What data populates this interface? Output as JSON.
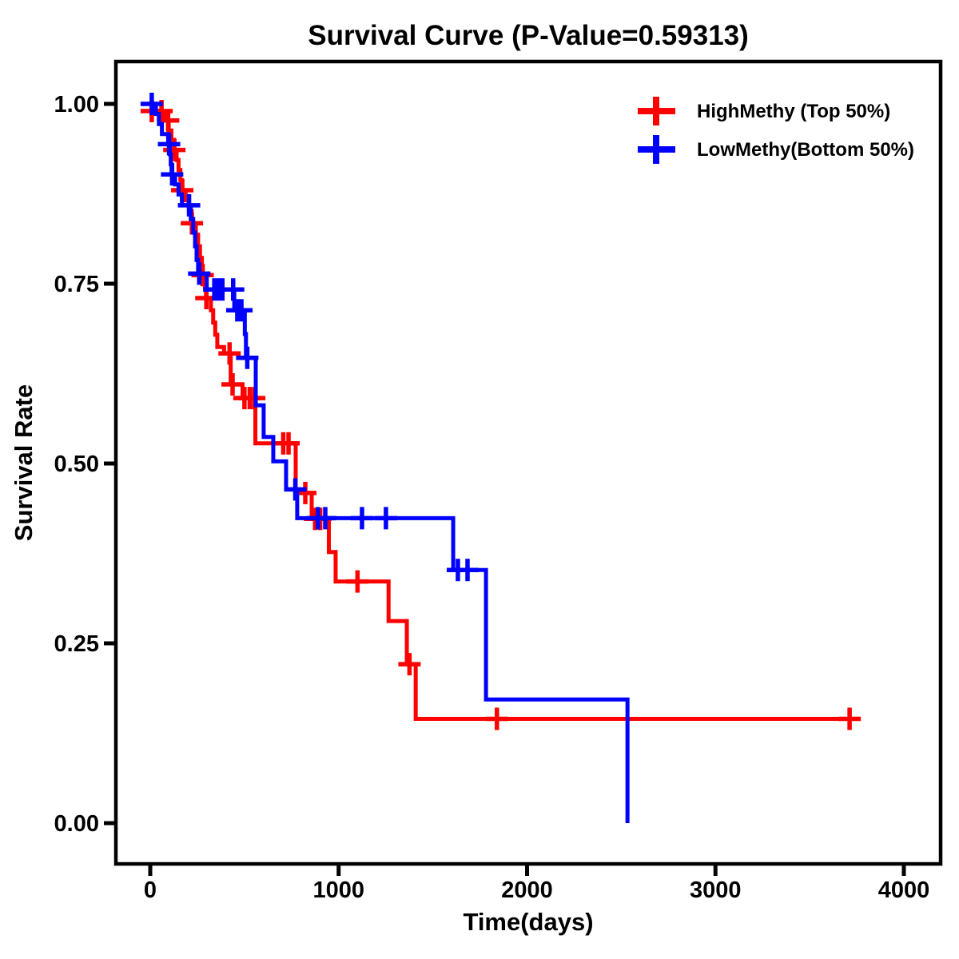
{
  "title": "Survival Curve (P-Value=0.59313)",
  "x_axis": {
    "label": "Time(days)"
  },
  "y_axis": {
    "label": "Survival Rate"
  },
  "legend": [
    {
      "label": "HighMethy (Top 50%)",
      "color": "#FF0000"
    },
    {
      "label": "LowMethy(Bottom 50%)",
      "color": "#0000FF"
    }
  ],
  "chart_data": {
    "type": "line",
    "subtype": "kaplan-meier-step-curve",
    "title": "Survival Curve (P-Value=0.59313)",
    "p_value": 0.59313,
    "xlabel": "Time(days)",
    "ylabel": "Survival Rate",
    "xlim": [
      0,
      4000
    ],
    "ylim": [
      0.0,
      1.0
    ],
    "grid": false,
    "legend_position": "top-right",
    "x_ticks": [
      0,
      1000,
      2000,
      3000,
      4000
    ],
    "y_ticks": [
      {
        "value": 0.0,
        "label": "0.00"
      },
      {
        "value": 0.25,
        "label": "0.25"
      },
      {
        "value": 0.5,
        "label": "0.50"
      },
      {
        "value": 0.75,
        "label": "0.75"
      },
      {
        "value": 1.0,
        "label": "1.00"
      }
    ],
    "series": [
      {
        "id": "highmethy",
        "name": "HighMethy (Top 50%)",
        "color": "#FF0000",
        "steps": [
          [
            0,
            1.0
          ],
          [
            12,
            0.99
          ],
          [
            80,
            0.977
          ],
          [
            98,
            0.963
          ],
          [
            112,
            0.95
          ],
          [
            126,
            0.936
          ],
          [
            140,
            0.922
          ],
          [
            150,
            0.908
          ],
          [
            160,
            0.894
          ],
          [
            168,
            0.88
          ],
          [
            188,
            0.866
          ],
          [
            205,
            0.851
          ],
          [
            220,
            0.834
          ],
          [
            242,
            0.818
          ],
          [
            254,
            0.802
          ],
          [
            264,
            0.786
          ],
          [
            274,
            0.762
          ],
          [
            290,
            0.746
          ],
          [
            296,
            0.73
          ],
          [
            322,
            0.713
          ],
          [
            334,
            0.696
          ],
          [
            345,
            0.679
          ],
          [
            356,
            0.662
          ],
          [
            392,
            0.653
          ],
          [
            427,
            0.61
          ],
          [
            490,
            0.591
          ],
          [
            558,
            0.528
          ],
          [
            772,
            0.459
          ],
          [
            857,
            0.423
          ],
          [
            948,
            0.377
          ],
          [
            984,
            0.336
          ],
          [
            1265,
            0.281
          ],
          [
            1362,
            0.221
          ],
          [
            1409,
            0.145
          ],
          [
            3712,
            0.145
          ]
        ],
        "censors": [
          [
            8,
            0.99
          ],
          [
            60,
            0.99
          ],
          [
            95,
            0.977
          ],
          [
            128,
            0.936
          ],
          [
            170,
            0.88
          ],
          [
            221,
            0.834
          ],
          [
            278,
            0.762
          ],
          [
            298,
            0.73
          ],
          [
            421,
            0.653
          ],
          [
            437,
            0.61
          ],
          [
            500,
            0.591
          ],
          [
            528,
            0.591
          ],
          [
            552,
            0.591
          ],
          [
            706,
            0.528
          ],
          [
            734,
            0.528
          ],
          [
            823,
            0.459
          ],
          [
            875,
            0.423
          ],
          [
            902,
            0.423
          ],
          [
            1100,
            0.336
          ],
          [
            1376,
            0.221
          ],
          [
            1840,
            0.145
          ],
          [
            3712,
            0.145
          ]
        ]
      },
      {
        "id": "lowmethy",
        "name": "LowMethy(Bottom 50%)",
        "color": "#0000FF",
        "steps": [
          [
            0,
            1.0
          ],
          [
            30,
            0.986
          ],
          [
            46,
            0.972
          ],
          [
            62,
            0.958
          ],
          [
            95,
            0.944
          ],
          [
            104,
            0.93
          ],
          [
            109,
            0.916
          ],
          [
            113,
            0.902
          ],
          [
            132,
            0.888
          ],
          [
            150,
            0.874
          ],
          [
            168,
            0.859
          ],
          [
            215,
            0.84
          ],
          [
            228,
            0.821
          ],
          [
            238,
            0.802
          ],
          [
            246,
            0.783
          ],
          [
            254,
            0.764
          ],
          [
            300,
            0.742
          ],
          [
            446,
            0.713
          ],
          [
            502,
            0.68
          ],
          [
            508,
            0.647
          ],
          [
            560,
            0.581
          ],
          [
            602,
            0.537
          ],
          [
            653,
            0.503
          ],
          [
            721,
            0.464
          ],
          [
            780,
            0.424
          ],
          [
            1608,
            0.352
          ],
          [
            1782,
            0.172
          ],
          [
            2533,
            0.0
          ]
        ],
        "censors": [
          [
            8,
            1.0
          ],
          [
            100,
            0.944
          ],
          [
            116,
            0.902
          ],
          [
            206,
            0.859
          ],
          [
            260,
            0.764
          ],
          [
            340,
            0.742
          ],
          [
            362,
            0.742
          ],
          [
            383,
            0.742
          ],
          [
            440,
            0.742
          ],
          [
            462,
            0.713
          ],
          [
            484,
            0.713
          ],
          [
            515,
            0.647
          ],
          [
            770,
            0.464
          ],
          [
            890,
            0.424
          ],
          [
            929,
            0.424
          ],
          [
            1124,
            0.424
          ],
          [
            1251,
            0.424
          ],
          [
            1633,
            0.352
          ],
          [
            1684,
            0.352
          ]
        ]
      }
    ]
  }
}
